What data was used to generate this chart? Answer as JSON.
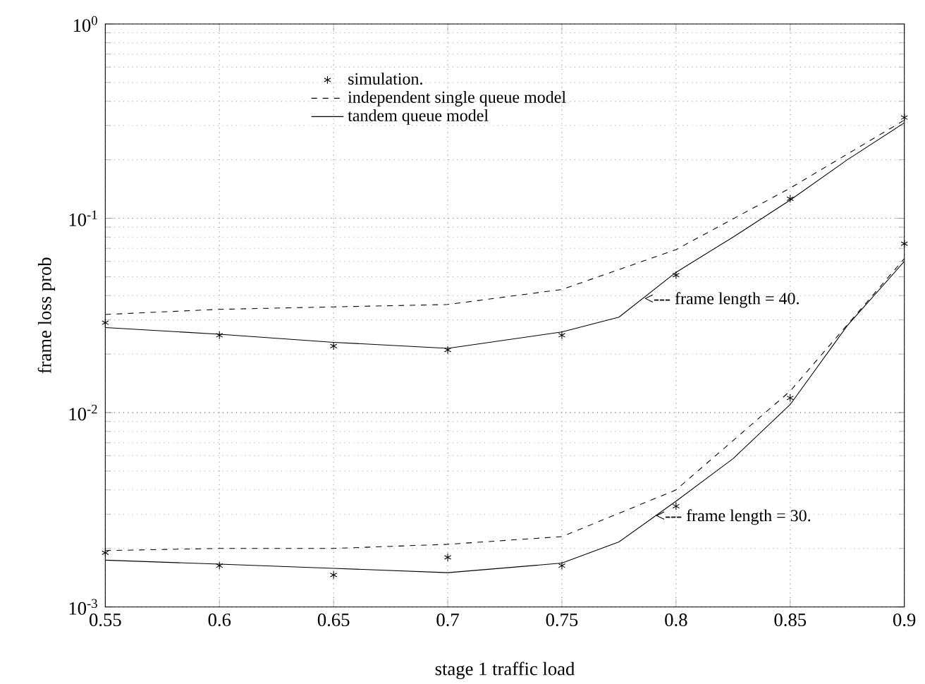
{
  "chart_data": {
    "type": "line",
    "xlabel": "stage 1 traffic load",
    "ylabel": "frame loss prob",
    "log": "y",
    "grid": true,
    "legend": "top left",
    "xlim": [
      0.55,
      0.9
    ],
    "xticks": [
      0.55,
      0.6,
      0.65,
      0.7,
      0.75,
      0.8,
      0.85,
      0.9
    ],
    "ylim": [
      0.001,
      1
    ],
    "yticks": [
      {
        "value": 0.001,
        "label": "10$^{-3}$"
      },
      {
        "value": 0.01,
        "label": "10$^{-2}$"
      },
      {
        "value": 0.1,
        "label": "10$^{-1}$"
      },
      {
        "value": 1,
        "label": "10$^{0}$"
      }
    ],
    "series": [
      {
        "name": "simulation.",
        "type": "scatter",
        "marker": "cross",
        "color": "#000000",
        "x": [
          0.55,
          0.6,
          0.65,
          0.7,
          0.75,
          0.8,
          0.85,
          0.9
        ],
        "values": [
          0.029,
          0.025,
          0.022,
          0.021,
          0.025,
          0.051,
          0.126,
          0.33
        ]
      },
      {
        "name": "independent single queue model",
        "line_style": "dashed",
        "color": "#000000",
        "x": [
          0.55,
          0.6,
          0.65,
          0.7,
          0.75,
          0.8,
          0.85,
          0.9
        ],
        "values": [
          0.032,
          0.034,
          0.035,
          0.036,
          0.043,
          0.069,
          0.143,
          0.32
        ]
      },
      {
        "name": "tandem queue model",
        "line_style": "solid",
        "color": "#000000",
        "x": [
          0.55,
          0.6,
          0.65,
          0.7,
          0.75,
          0.775,
          0.8,
          0.825,
          0.85,
          0.875,
          0.9
        ],
        "values": [
          0.0274,
          0.0253,
          0.023,
          0.0214,
          0.026,
          0.031,
          0.0527,
          0.08,
          0.124,
          0.2,
          0.31
        ]
      },
      {
        "type": "scatter",
        "marker": "cross",
        "color": "#000000",
        "x": [
          0.55,
          0.6,
          0.65,
          0.7,
          0.75,
          0.8,
          0.85,
          0.9
        ],
        "values": [
          0.0019,
          0.00163,
          0.00146,
          0.0018,
          0.00163,
          0.0033,
          0.0119,
          0.074
        ]
      },
      {
        "line_style": "dashed",
        "color": "#000000",
        "x": [
          0.55,
          0.6,
          0.65,
          0.7,
          0.75,
          0.8,
          0.85,
          0.9
        ],
        "values": [
          0.00195,
          0.002,
          0.002,
          0.0021,
          0.0023,
          0.004,
          0.0129,
          0.062
        ]
      },
      {
        "line_style": "solid",
        "color": "#000000",
        "x": [
          0.55,
          0.6,
          0.65,
          0.7,
          0.75,
          0.775,
          0.8,
          0.825,
          0.85,
          0.875,
          0.9
        ],
        "values": [
          0.00174,
          0.00166,
          0.00158,
          0.0015,
          0.00168,
          0.00216,
          0.0035,
          0.0058,
          0.011,
          0.028,
          0.06
        ]
      }
    ],
    "annotations": [
      {
        "text": "<--- frame length = 40.",
        "x": 0.785,
        "y": 0.038
      },
      {
        "text": "<--- frame length = 30.",
        "x": 0.79,
        "y": 0.0029
      }
    ]
  }
}
